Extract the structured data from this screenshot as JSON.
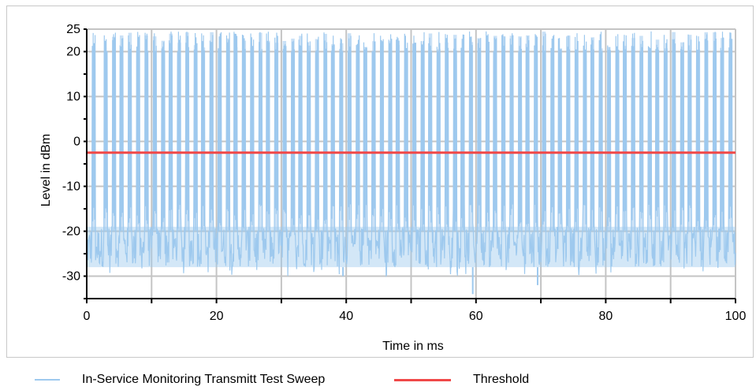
{
  "chart_data": {
    "type": "line",
    "xlabel": "Time in ms",
    "ylabel": "Level in dBm",
    "xlim": [
      0,
      100
    ],
    "ylim": [
      -35,
      25
    ],
    "x_ticks": [
      "0",
      "20",
      "40",
      "60",
      "80",
      "100"
    ],
    "x_minor_tick_step": 10,
    "y_ticks": [
      "25",
      "20",
      "10",
      "0",
      "-10",
      "-20",
      "-30"
    ],
    "y_minor_tick_step": 5,
    "grid": true,
    "legend_position": "bottom",
    "series": [
      {
        "name": "In-Service Monitoring Transmitt Test Sweep",
        "color": "#9ec9ee",
        "style": "bursty noise signal",
        "noise_floor_range": [
          -28,
          -19
        ],
        "burst_peak_range": [
          20,
          24.5
        ],
        "burst_starts_ms": [
          0.8,
          2.6,
          3.9,
          5.1,
          6.4,
          7.6,
          8.9,
          10.2,
          11.5,
          12.7,
          14.0,
          15.2,
          16.5,
          17.7,
          19.0,
          20.2,
          21.5,
          22.7,
          24.0,
          25.2,
          26.5,
          27.7,
          29.0,
          30.2,
          31.5,
          32.7,
          34.0,
          35.2,
          36.5,
          37.7,
          39.0,
          40.2,
          41.5,
          42.7,
          44.0,
          45.2,
          46.5,
          47.7,
          49.0,
          50.2,
          51.5,
          52.7,
          54.0,
          55.2,
          56.5,
          57.7,
          59.0,
          60.2,
          61.5,
          62.7,
          64.0,
          65.2,
          66.5,
          67.7,
          69.0,
          70.2,
          71.5,
          72.7,
          74.0,
          75.2,
          76.5,
          77.7,
          79.0,
          80.2,
          81.5,
          82.7,
          84.0,
          85.2,
          86.5,
          87.7,
          89.0,
          90.2,
          91.5,
          92.7,
          94.0,
          95.2,
          96.5,
          97.7,
          99.0
        ],
        "burst_width_ms": 0.55,
        "dips": [
          {
            "x": 39.5,
            "y": -30
          },
          {
            "x": 59.5,
            "y": -34
          },
          {
            "x": 69.5,
            "y": -32
          }
        ]
      },
      {
        "name": "Threshold",
        "color": "#f04848",
        "x": [
          0,
          100
        ],
        "y": [
          -2.5,
          -2.5
        ]
      }
    ]
  }
}
